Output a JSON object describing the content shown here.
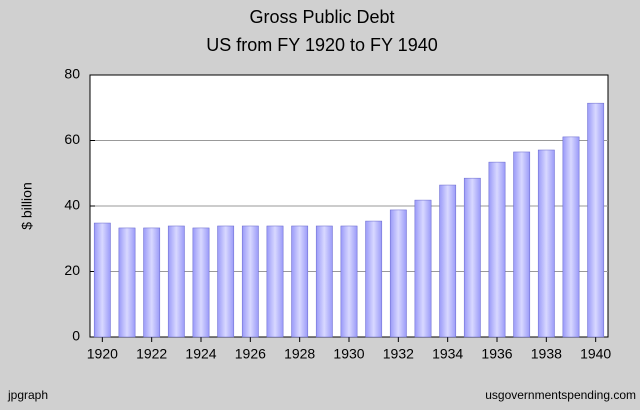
{
  "chart_data": {
    "type": "bar",
    "title": "Gross Public Debt",
    "subtitle": "US from FY 1920 to FY 1940",
    "y_label": "$ billion",
    "credit": "jpgraph",
    "source": "usgovernmentspending.com",
    "categories": [
      "1920",
      null,
      "1922",
      null,
      "1924",
      null,
      "1926",
      null,
      "1928",
      null,
      "1930",
      null,
      "1932",
      null,
      "1934",
      null,
      "1936",
      null,
      "1938",
      null,
      "1940"
    ],
    "values": [
      34.8,
      33.3,
      33.3,
      33.9,
      33.3,
      33.9,
      33.9,
      33.9,
      33.9,
      33.9,
      33.9,
      35.4,
      38.8,
      41.8,
      46.4,
      48.5,
      53.4,
      56.5,
      57.1,
      61.1,
      71.4
    ],
    "color": "#9a9af8",
    "ylim": [
      0,
      80
    ],
    "yticks": [
      0,
      20,
      40,
      60,
      80
    ],
    "grid": true
  }
}
